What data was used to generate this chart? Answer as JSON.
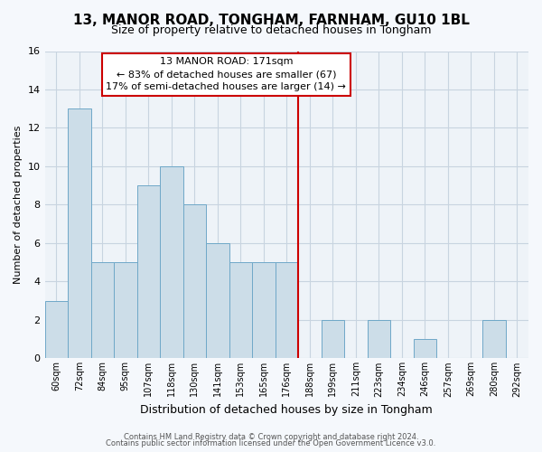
{
  "title": "13, MANOR ROAD, TONGHAM, FARNHAM, GU10 1BL",
  "subtitle": "Size of property relative to detached houses in Tongham",
  "xlabel": "Distribution of detached houses by size in Tongham",
  "ylabel": "Number of detached properties",
  "bin_labels": [
    "60sqm",
    "72sqm",
    "84sqm",
    "95sqm",
    "107sqm",
    "118sqm",
    "130sqm",
    "141sqm",
    "153sqm",
    "165sqm",
    "176sqm",
    "188sqm",
    "199sqm",
    "211sqm",
    "223sqm",
    "234sqm",
    "246sqm",
    "257sqm",
    "269sqm",
    "280sqm",
    "292sqm"
  ],
  "bar_values": [
    3,
    13,
    5,
    5,
    9,
    10,
    8,
    6,
    5,
    5,
    5,
    0,
    2,
    0,
    2,
    0,
    1,
    0,
    0,
    2,
    0
  ],
  "bar_color": "#ccdde8",
  "bar_edge_color": "#6fa8c8",
  "highlight_bin_index": 10,
  "highlight_color": "#cc0000",
  "ylim": [
    0,
    16
  ],
  "yticks": [
    0,
    2,
    4,
    6,
    8,
    10,
    12,
    14,
    16
  ],
  "annotation_title": "13 MANOR ROAD: 171sqm",
  "annotation_line1": "← 83% of detached houses are smaller (67)",
  "annotation_line2": "17% of semi-detached houses are larger (14) →",
  "annotation_box_color": "#ffffff",
  "annotation_border_color": "#cc0000",
  "footer_line1": "Contains HM Land Registry data © Crown copyright and database right 2024.",
  "footer_line2": "Contains public sector information licensed under the Open Government Licence v3.0.",
  "plot_bg_color": "#eef3f8",
  "fig_bg_color": "#f5f8fc",
  "grid_color": "#c8d4e0",
  "fig_width": 6.0,
  "fig_height": 5.0
}
